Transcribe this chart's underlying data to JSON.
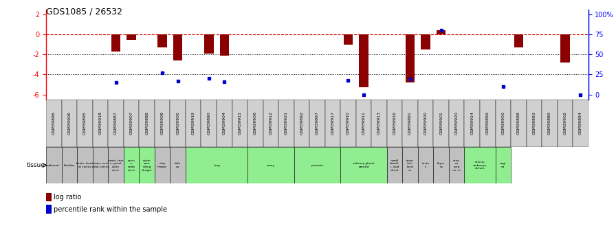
{
  "title": "GDS1085 / 26532",
  "samples": [
    "GSM39896",
    "GSM39906",
    "GSM39895",
    "GSM39918",
    "GSM39887",
    "GSM39907",
    "GSM39888",
    "GSM39908",
    "GSM39905",
    "GSM39919",
    "GSM39890",
    "GSM39904",
    "GSM39915",
    "GSM39909",
    "GSM39912",
    "GSM39921",
    "GSM39892",
    "GSM39897",
    "GSM39917",
    "GSM39910",
    "GSM39911",
    "GSM39913",
    "GSM39916",
    "GSM39891",
    "GSM39900",
    "GSM39901",
    "GSM39920",
    "GSM39914",
    "GSM39899",
    "GSM39903",
    "GSM39898",
    "GSM39893",
    "GSM39889",
    "GSM39902",
    "GSM39894"
  ],
  "log_ratio": [
    0,
    0,
    0,
    0,
    -1.7,
    -0.5,
    0,
    -1.3,
    -2.6,
    0,
    -1.9,
    -2.1,
    0,
    0,
    0,
    0,
    0,
    0,
    0,
    -1.0,
    -5.3,
    0,
    0,
    -4.8,
    -1.5,
    0.4,
    0,
    0,
    0,
    0,
    -1.3,
    0,
    0,
    -2.8,
    0
  ],
  "percentile_pct": [
    null,
    null,
    null,
    null,
    15,
    null,
    null,
    27,
    17,
    null,
    20,
    16,
    null,
    null,
    null,
    null,
    null,
    null,
    null,
    18,
    0,
    null,
    null,
    19,
    null,
    80,
    null,
    null,
    null,
    10,
    null,
    null,
    null,
    null,
    0
  ],
  "tissues": [
    {
      "label": "adrenal",
      "start": 0,
      "end": 1,
      "color": "#c0c0c0"
    },
    {
      "label": "bladder",
      "start": 1,
      "end": 2,
      "color": "#c0c0c0"
    },
    {
      "label": "brain, front\nal cortex",
      "start": 2,
      "end": 3,
      "color": "#c0c0c0"
    },
    {
      "label": "brain, occi\npital cortex",
      "start": 3,
      "end": 4,
      "color": "#c0c0c0"
    },
    {
      "label": "brain, tem\nx, poral\ncorte\ncervi",
      "start": 4,
      "end": 5,
      "color": "#c0c0c0"
    },
    {
      "label": "cervi\nx,\nendo\ncervi",
      "start": 5,
      "end": 6,
      "color": "#90ee90"
    },
    {
      "label": "colon\nasce\nnding\ndiragm",
      "start": 6,
      "end": 7,
      "color": "#90ee90"
    },
    {
      "label": "diap\nhragm",
      "start": 7,
      "end": 8,
      "color": "#c0c0c0"
    },
    {
      "label": "kidn\ney",
      "start": 8,
      "end": 9,
      "color": "#c0c0c0"
    },
    {
      "label": "lung",
      "start": 9,
      "end": 13,
      "color": "#90ee90"
    },
    {
      "label": "ovary",
      "start": 13,
      "end": 16,
      "color": "#90ee90"
    },
    {
      "label": "prostate",
      "start": 16,
      "end": 19,
      "color": "#90ee90"
    },
    {
      "label": "salivary gland,\nparotid",
      "start": 19,
      "end": 22,
      "color": "#90ee90"
    },
    {
      "label": "small\nbowel,\nI. dud\ndenut",
      "start": 22,
      "end": 23,
      "color": "#c0c0c0"
    },
    {
      "label": "stom\nach,\nfund\nus",
      "start": 23,
      "end": 24,
      "color": "#c0c0c0"
    },
    {
      "label": "teste\ns",
      "start": 24,
      "end": 25,
      "color": "#c0c0c0"
    },
    {
      "label": "thym\nus",
      "start": 25,
      "end": 26,
      "color": "#c0c0c0"
    },
    {
      "label": "uteri\nne\ncorp\nus, m",
      "start": 26,
      "end": 27,
      "color": "#c0c0c0"
    },
    {
      "label": "uterus,\nendomyo\netrium",
      "start": 27,
      "end": 29,
      "color": "#90ee90"
    },
    {
      "label": "vagi\nna",
      "start": 29,
      "end": 30,
      "color": "#90ee90"
    }
  ],
  "ylim": [
    -6.5,
    2.5
  ],
  "yticks_left": [
    2,
    0,
    -2,
    -4,
    -6
  ],
  "right_tick_positions": [
    2,
    0,
    -2,
    -4,
    -6
  ],
  "right_tick_labels": [
    "100%",
    "75",
    "50",
    "25",
    "0"
  ],
  "bar_color": "#8b0000",
  "dot_color": "#0000cd",
  "hline_color": "#cc0000",
  "grid_color": "#000000",
  "bg_color": "#ffffff"
}
